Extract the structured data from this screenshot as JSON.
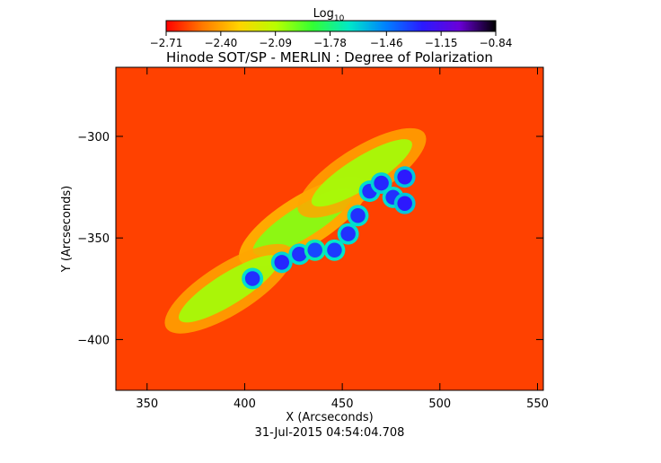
{
  "chart_data": {
    "type": "heatmap",
    "title": "Hinode SOT/SP - MERLIN : Degree of Polarization",
    "date_label": "31-Jul-2015 04:54:04.708",
    "xlabel": "X (Arcseconds)",
    "ylabel": "Y (Arcseconds)",
    "xlim": [
      334,
      553
    ],
    "ylim": [
      -425,
      -266
    ],
    "x_ticks": [
      350,
      400,
      450,
      500,
      550
    ],
    "y_ticks": [
      -300,
      -350,
      -400
    ],
    "colorbar": {
      "label_base": "Log",
      "label_sub": "10",
      "ticks": [
        -2.71,
        -2.4,
        -2.09,
        -1.78,
        -1.46,
        -1.15,
        -0.84
      ],
      "tick_labels": [
        "−2.71",
        "−2.40",
        "−2.09",
        "−1.78",
        "−1.46",
        "−1.15",
        "−0.84"
      ],
      "range": [
        -2.71,
        -0.84
      ],
      "colors": [
        "#ff0000",
        "#ff7a00",
        "#ffd400",
        "#b8ff00",
        "#33ff33",
        "#00e8c8",
        "#0080ff",
        "#2a1aff",
        "#6a00d8",
        "#000000"
      ]
    },
    "background_level": -2.6,
    "features": [
      {
        "kind": "plage",
        "x": 430,
        "y": -342,
        "value": -2.0
      },
      {
        "kind": "plage",
        "x": 392,
        "y": -375,
        "value": -2.05
      },
      {
        "kind": "plage",
        "x": 460,
        "y": -318,
        "value": -2.05
      },
      {
        "kind": "pore",
        "x": 404,
        "y": -370,
        "value": -1.3
      },
      {
        "kind": "pore",
        "x": 419,
        "y": -362,
        "value": -1.28
      },
      {
        "kind": "pore",
        "x": 428,
        "y": -358,
        "value": -1.3
      },
      {
        "kind": "pore",
        "x": 446,
        "y": -356,
        "value": -1.32
      },
      {
        "kind": "pore",
        "x": 453,
        "y": -348,
        "value": -1.3
      },
      {
        "kind": "pore",
        "x": 458,
        "y": -339,
        "value": -1.3
      },
      {
        "kind": "pore",
        "x": 464,
        "y": -327,
        "value": -1.3
      },
      {
        "kind": "pore",
        "x": 470,
        "y": -323,
        "value": -1.28
      },
      {
        "kind": "pore",
        "x": 476,
        "y": -330,
        "value": -1.3
      },
      {
        "kind": "pore",
        "x": 482,
        "y": -320,
        "value": -1.25
      },
      {
        "kind": "pore",
        "x": 482,
        "y": -333,
        "value": -1.25
      },
      {
        "kind": "pore",
        "x": 436,
        "y": -356,
        "value": -1.35
      }
    ]
  }
}
